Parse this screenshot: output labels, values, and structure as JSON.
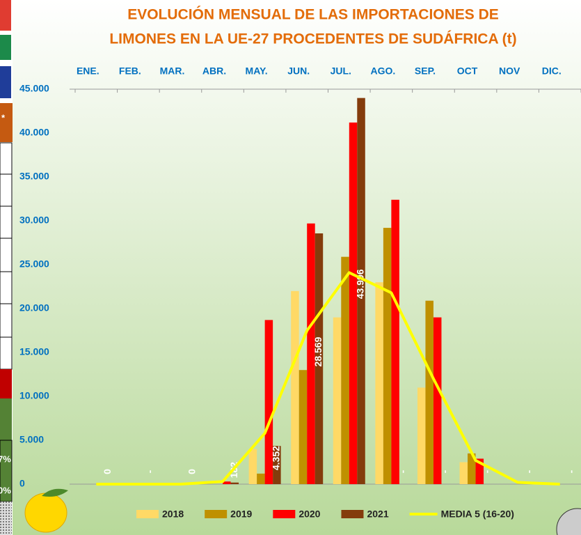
{
  "side_fragments": [
    "*",
    "7%",
    "0%"
  ],
  "chart_data": {
    "type": "bar",
    "title": [
      "EVOLUCIÓN MENSUAL DE LAS IMPORTACIONES DE",
      "LIMONES EN LA UE-27 PROCEDENTES DE SUDÁFRICA (t)"
    ],
    "categories": [
      "ENE.",
      "FEB.",
      "MAR.",
      "ABR.",
      "MAY.",
      "JUN.",
      "JUL.",
      "AGO.",
      "SEP.",
      "OCT",
      "NOV",
      "DIC."
    ],
    "series": [
      {
        "name": "2018",
        "color": "#ffd966",
        "values": [
          0,
          0,
          0,
          0,
          4000,
          22000,
          19000,
          23000,
          11000,
          2500,
          0,
          0
        ]
      },
      {
        "name": "2019",
        "color": "#bf9000",
        "values": [
          0,
          0,
          0,
          0,
          1200,
          13000,
          25900,
          29200,
          20900,
          3500,
          0,
          0
        ]
      },
      {
        "name": "2020",
        "color": "#ff0000",
        "values": [
          0,
          0,
          0,
          300,
          18700,
          29700,
          41200,
          32400,
          19000,
          2900,
          0,
          0
        ]
      },
      {
        "name": "2021",
        "color": "#843c0c",
        "values": [
          0,
          null,
          0,
          182,
          4352,
          28569,
          43996,
          null,
          null,
          null,
          null,
          null
        ],
        "value_labels": [
          "0",
          "-",
          "0",
          "182",
          "4.352",
          "28.569",
          "43.996",
          "-",
          "-",
          "-",
          "-",
          "-"
        ]
      },
      {
        "name": "MEDIA 5 (16-20)",
        "color": "#ffff00",
        "type": "line",
        "values": [
          0,
          0,
          0,
          300,
          5800,
          17500,
          24100,
          21800,
          12000,
          2700,
          200,
          0
        ]
      }
    ],
    "ylim": [
      0,
      45000
    ],
    "yticks": [
      0,
      {
        "value": 5000,
        "label": "5.000"
      },
      {
        "value": 10000,
        "label": "10.000"
      },
      {
        "value": 15000,
        "label": "15.000"
      },
      {
        "value": 20000,
        "label": "20.000"
      },
      {
        "value": 25000,
        "label": "25.000"
      },
      {
        "value": 30000,
        "label": "30.000"
      },
      {
        "value": 35000,
        "label": "35.000"
      },
      {
        "value": 40000,
        "label": "40.000"
      },
      {
        "value": 45000,
        "label": "45.000"
      }
    ],
    "grid": false
  }
}
